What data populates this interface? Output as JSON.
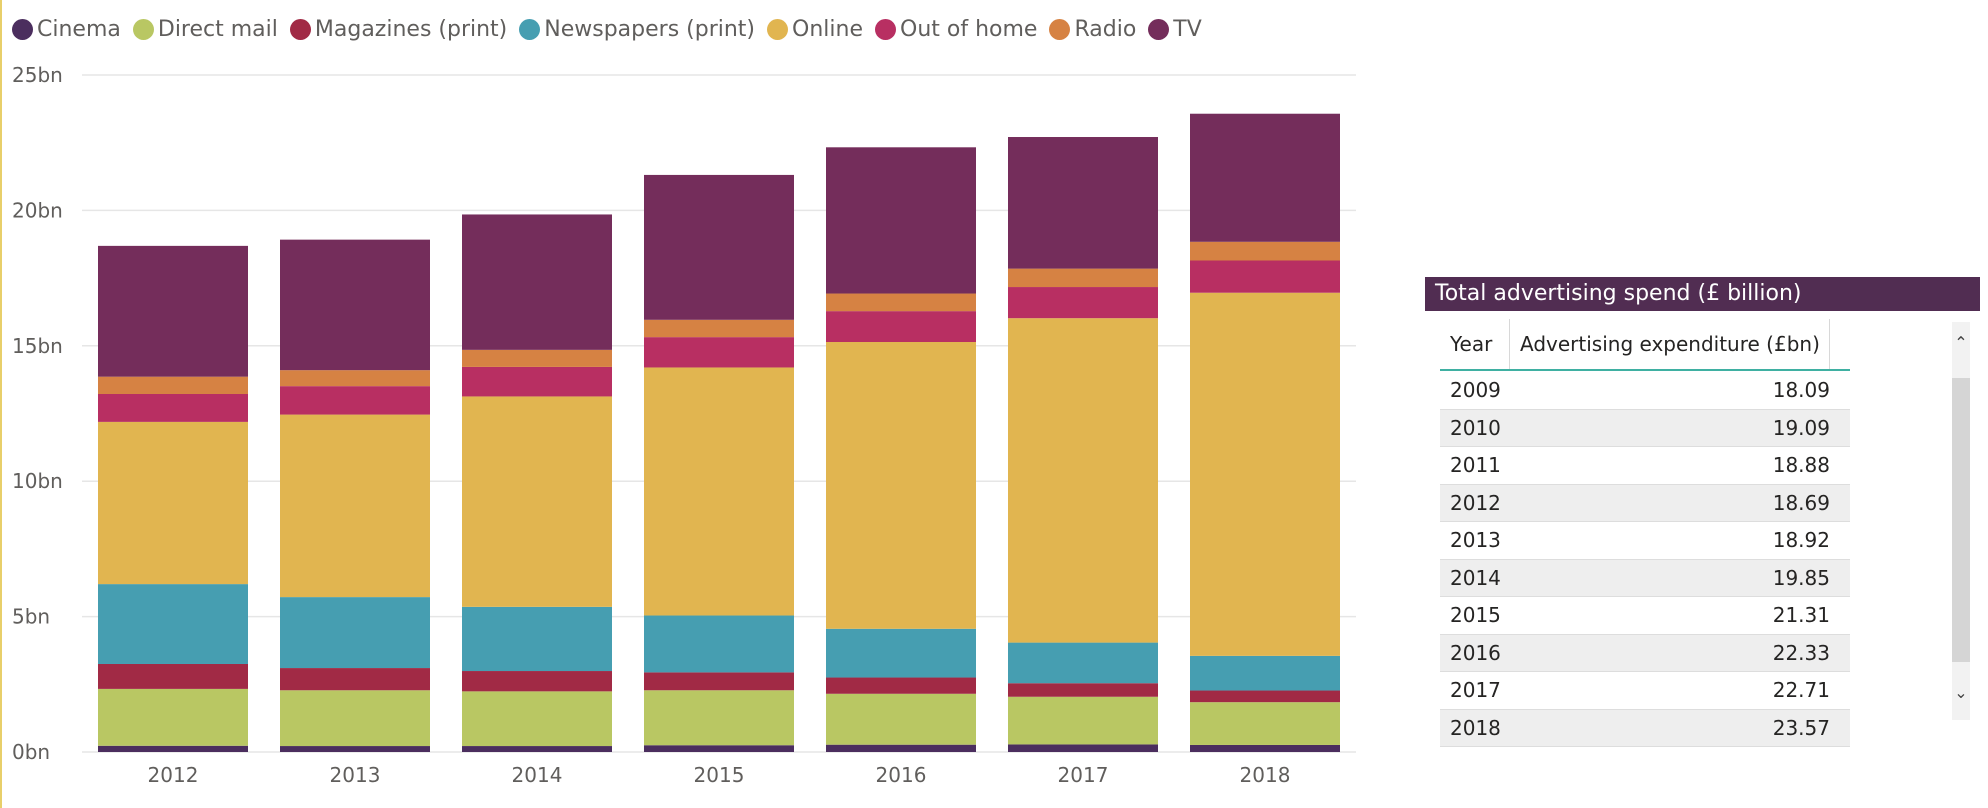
{
  "chart_data": {
    "type": "bar",
    "stacked": true,
    "categories": [
      "2012",
      "2013",
      "2014",
      "2015",
      "2016",
      "2017",
      "2018"
    ],
    "series": [
      {
        "name": "Cinema",
        "color": "#4b2e5e",
        "values": [
          0.23,
          0.22,
          0.22,
          0.25,
          0.27,
          0.28,
          0.26
        ]
      },
      {
        "name": "Direct mail",
        "color": "#b9c763",
        "values": [
          2.1,
          2.06,
          2.02,
          2.03,
          1.88,
          1.76,
          1.58
        ]
      },
      {
        "name": "Magazines (print)",
        "color": "#a12a45",
        "values": [
          0.92,
          0.82,
          0.75,
          0.66,
          0.6,
          0.5,
          0.43
        ]
      },
      {
        "name": "Newspapers (print)",
        "color": "#469eb1",
        "values": [
          2.95,
          2.62,
          2.37,
          2.1,
          1.8,
          1.5,
          1.28
        ]
      },
      {
        "name": "Online",
        "color": "#e1b550",
        "values": [
          5.99,
          6.74,
          7.77,
          9.16,
          10.59,
          11.98,
          13.41
        ]
      },
      {
        "name": "Out of home",
        "color": "#b82f62",
        "values": [
          1.03,
          1.05,
          1.09,
          1.12,
          1.14,
          1.15,
          1.19
        ]
      },
      {
        "name": "Radio",
        "color": "#d68243",
        "values": [
          0.64,
          0.59,
          0.63,
          0.64,
          0.65,
          0.68,
          0.69
        ]
      },
      {
        "name": "TV",
        "color": "#742d5b",
        "values": [
          4.83,
          4.82,
          5.0,
          5.35,
          5.4,
          4.86,
          4.73
        ]
      }
    ],
    "yticks": [
      "0bn",
      "5bn",
      "10bn",
      "15bn",
      "20bn",
      "25bn"
    ],
    "ylim": [
      0,
      25
    ],
    "grid": true,
    "legend": "top-left"
  },
  "table": {
    "title": "Total advertising spend (£ billion)",
    "columns": [
      "Year",
      "Advertising expenditure (£bn)"
    ],
    "rows": [
      [
        "2009",
        "18.09"
      ],
      [
        "2010",
        "19.09"
      ],
      [
        "2011",
        "18.88"
      ],
      [
        "2012",
        "18.69"
      ],
      [
        "2013",
        "18.92"
      ],
      [
        "2014",
        "19.85"
      ],
      [
        "2015",
        "21.31"
      ],
      [
        "2016",
        "22.33"
      ],
      [
        "2017",
        "22.71"
      ],
      [
        "2018",
        "23.57"
      ]
    ]
  },
  "scrollbar": {
    "up_icon": "chevron-up-icon",
    "down_icon": "chevron-down-icon"
  }
}
